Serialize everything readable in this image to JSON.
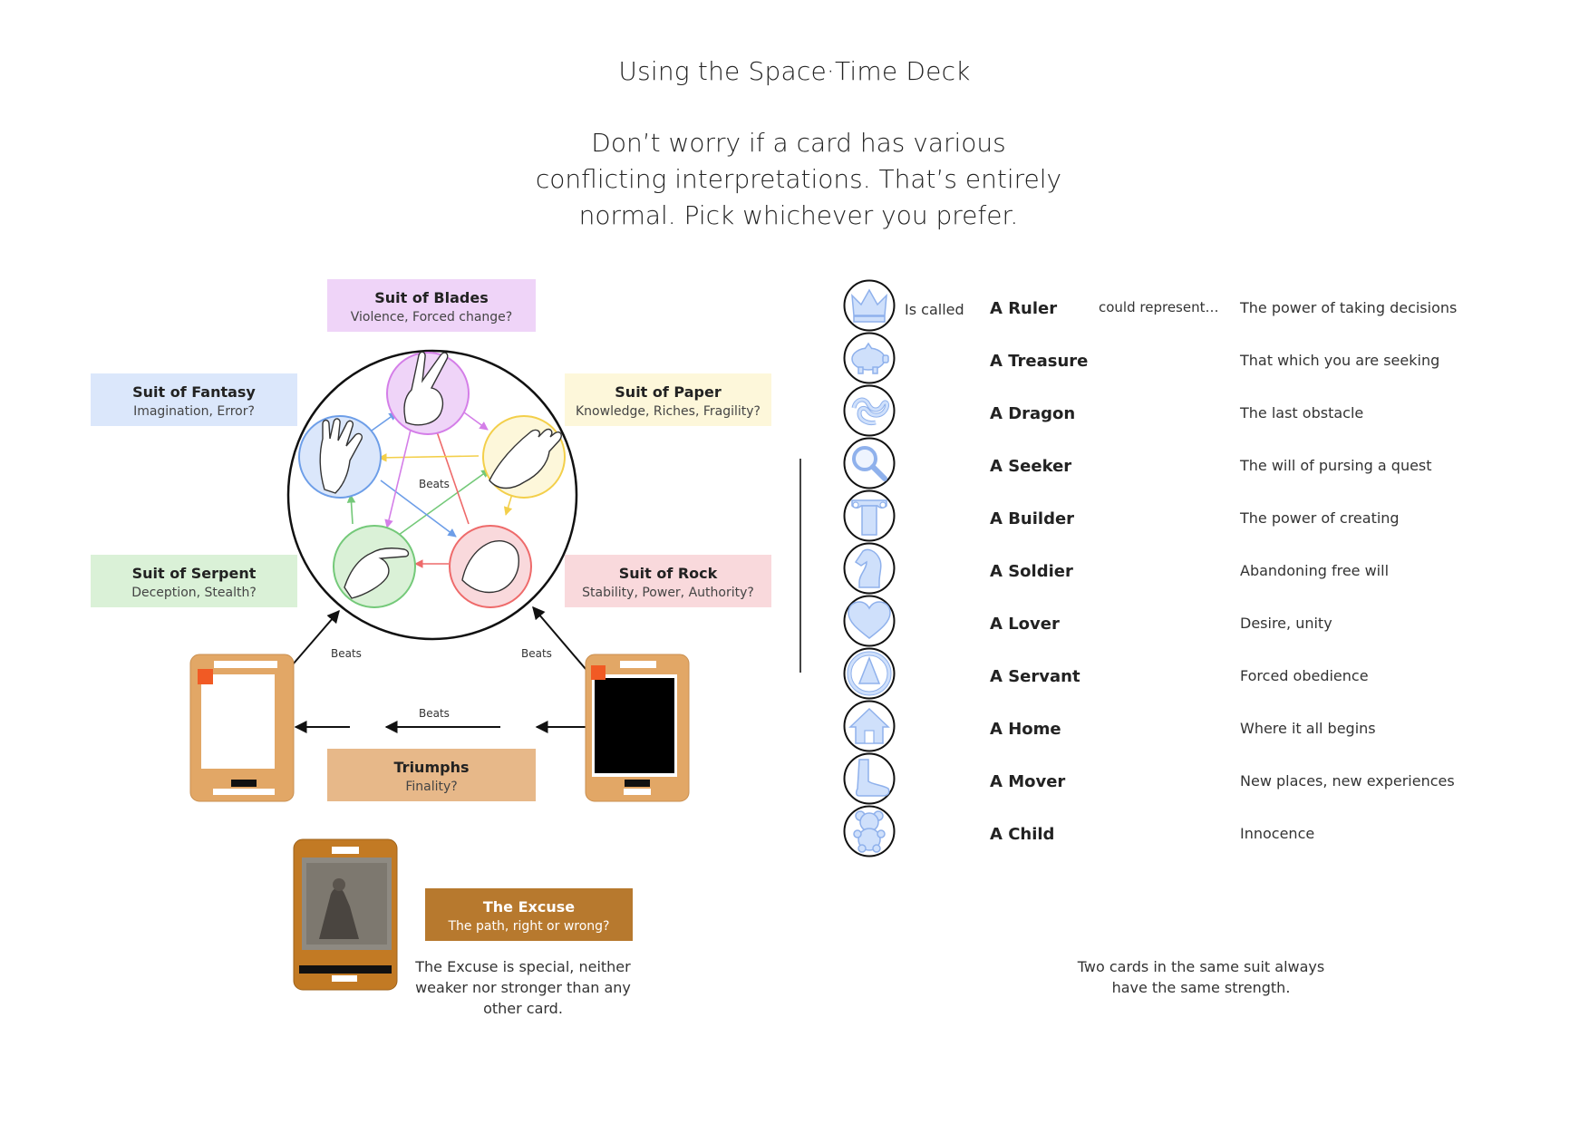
{
  "title": "Using the Space·Time Deck",
  "subtitle": "Don’t worry if a card has various conflicting interpretations. That’s entirely normal. Pick whichever you prefer.",
  "suits": {
    "blades": {
      "title": "Suit of Blades",
      "subtitle": "Violence, Forced change?",
      "color": "#efd4f8"
    },
    "fantasy": {
      "title": "Suit of Fantasy",
      "subtitle": "Imagination, Error?",
      "color": "#dbe7fb"
    },
    "paper": {
      "title": "Suit of Paper",
      "subtitle": "Knowledge, Riches, Fragility?",
      "color": "#fdf7da"
    },
    "serpent": {
      "title": "Suit of Serpent",
      "subtitle": "Deception, Stealth?",
      "color": "#daf1d7"
    },
    "rock": {
      "title": "Suit of Rock",
      "subtitle": "Stability, Power, Authority?",
      "color": "#f9d9dc"
    }
  },
  "triumphs": {
    "title": "Triumphs",
    "subtitle": "Finality?",
    "color": "#e7b889"
  },
  "excuse": {
    "title": "The Excuse",
    "subtitle": "The path, right or wrong?",
    "color": "#b7792e",
    "caption": "The Excuse is special, neither weaker nor stronger than any other card."
  },
  "beats_label": "Beats",
  "same_suit_caption": "Two cards in the same suit always have the same strength.",
  "is_called_label": "Is called",
  "could_represent_label": "could represent…",
  "archetypes": [
    {
      "icon": "crown-icon",
      "name": "A Ruler",
      "meaning": "The power of taking decisions"
    },
    {
      "icon": "piggy-bank-icon",
      "name": "A Treasure",
      "meaning": "That which you are seeking"
    },
    {
      "icon": "dragon-icon",
      "name": "A Dragon",
      "meaning": "The last obstacle"
    },
    {
      "icon": "magnifier-icon",
      "name": "A Seeker",
      "meaning": "The will of pursing a quest"
    },
    {
      "icon": "column-icon",
      "name": "A Builder",
      "meaning": "The power of creating"
    },
    {
      "icon": "knight-chess-icon",
      "name": "A Soldier",
      "meaning": "Abandoning free will"
    },
    {
      "icon": "heart-icon",
      "name": "A Lover",
      "meaning": "Desire, unity"
    },
    {
      "icon": "collar-icon",
      "name": "A Servant",
      "meaning": "Forced obedience"
    },
    {
      "icon": "house-icon",
      "name": "A Home",
      "meaning": "Where it all begins"
    },
    {
      "icon": "foot-icon",
      "name": "A Mover",
      "meaning": "New places, new experiences"
    },
    {
      "icon": "teddy-bear-icon",
      "name": "A Child",
      "meaning": "Innocence"
    }
  ],
  "colors": {
    "icon_fill": "#cfe0fb",
    "icon_stroke": "#8fb1ec",
    "cork": "#e2a766",
    "wood": "#c27a24",
    "arrow_green": "#74c979",
    "arrow_red": "#ee6a6a",
    "arrow_blue": "#6d9ee8",
    "arrow_yellow": "#f3cf4a",
    "arrow_purple": "#d47ee8"
  }
}
